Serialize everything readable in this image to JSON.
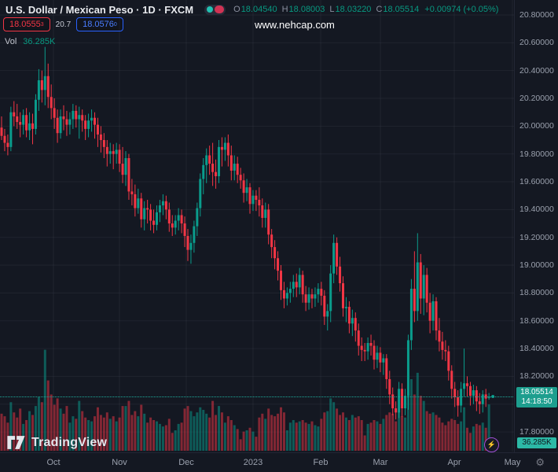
{
  "header": {
    "symbol_title": "U.S. Dollar / Mexican Peso · 1D · FXCM",
    "ohlc": {
      "o_label": "O",
      "o": "18.04540",
      "h_label": "H",
      "h": "18.08003",
      "l_label": "L",
      "l": "18.03220",
      "c_label": "C",
      "c": "18.05514",
      "change": "+0.00974 (+0.05%)"
    },
    "bid": "18.0555",
    "bid_sup": "3",
    "spread": "20.7",
    "ask": "18.0576",
    "ask_sup": "0",
    "vol_label": "Vol",
    "vol_value": "36.285K",
    "watermark": "www.nehcap.com"
  },
  "axis": {
    "price_labels": [
      "20.80000",
      "20.60000",
      "20.40000",
      "20.20000",
      "20.00000",
      "19.80000",
      "19.60000",
      "19.40000",
      "19.20000",
      "19.00000",
      "18.80000",
      "18.60000",
      "18.40000",
      "18.20000",
      "17.80000"
    ],
    "hidden_gridlines": [
      18.0
    ],
    "months": [
      {
        "label": "Oct",
        "x": 68
      },
      {
        "label": "Nov",
        "x": 152
      },
      {
        "label": "Dec",
        "x": 237
      },
      {
        "label": "2023",
        "x": 322
      },
      {
        "label": "Feb",
        "x": 408
      },
      {
        "label": "Mar",
        "x": 484
      },
      {
        "label": "Apr",
        "x": 578
      },
      {
        "label": "May",
        "x": 652
      }
    ],
    "last_price": "18.05514",
    "countdown": "14:18:50",
    "vol_axis_label": "36.285K",
    "gear_icon": "⚙"
  },
  "footer": {
    "logo_text": "TradingView",
    "boost_icon": "⚡"
  },
  "colors": {
    "background": "#141822",
    "up": "#0a9c8c",
    "down": "#f23645",
    "vol_up": "rgba(10,156,140,0.52)",
    "vol_down": "rgba(242,54,69,0.50)",
    "grid": "rgba(240,243,250,0.055)",
    "accent_teal": "#089981",
    "bid_red": "#f23645",
    "ask_blue": "#2962ff",
    "boost_purple": "#a855f7"
  },
  "chart_data": {
    "type": "candlestick",
    "title": "U.S. Dollar / Mexican Peso",
    "symbol": "USD/MXN",
    "timeframe": "1D",
    "exchange": "FXCM",
    "ylim": [
      17.65,
      20.9
    ],
    "grid": true,
    "volume_pane": true,
    "last_close": 18.05514,
    "columns": [
      "date",
      "open",
      "high",
      "low",
      "close",
      "volume_k"
    ],
    "candles": [
      [
        "2022-09-08",
        19.99,
        20.07,
        19.9,
        19.93,
        29
      ],
      [
        "2022-09-09",
        19.93,
        19.98,
        19.82,
        19.88,
        27
      ],
      [
        "2022-09-12",
        19.88,
        19.94,
        19.79,
        19.85,
        22
      ],
      [
        "2022-09-13",
        19.85,
        20.14,
        19.82,
        20.1,
        38
      ],
      [
        "2022-09-14",
        20.1,
        20.18,
        20.0,
        20.07,
        30
      ],
      [
        "2022-09-15",
        20.07,
        20.16,
        19.98,
        20.03,
        26
      ],
      [
        "2022-09-16",
        20.03,
        20.1,
        19.92,
        20.01,
        33
      ],
      [
        "2022-09-19",
        20.01,
        20.12,
        19.94,
        20.08,
        21
      ],
      [
        "2022-09-20",
        20.08,
        20.13,
        19.92,
        19.97,
        24
      ],
      [
        "2022-09-21",
        19.97,
        20.1,
        19.9,
        20.02,
        31
      ],
      [
        "2022-09-22",
        20.02,
        20.09,
        19.87,
        19.98,
        28
      ],
      [
        "2022-09-23",
        19.98,
        20.23,
        19.94,
        20.19,
        35
      ],
      [
        "2022-09-26",
        20.19,
        20.41,
        20.11,
        20.33,
        42
      ],
      [
        "2022-09-27",
        20.33,
        20.4,
        20.17,
        20.26,
        38
      ],
      [
        "2022-09-28",
        20.26,
        20.57,
        20.15,
        20.36,
        79
      ],
      [
        "2022-09-29",
        20.36,
        20.45,
        20.13,
        20.21,
        55
      ],
      [
        "2022-09-30",
        20.21,
        20.3,
        20.05,
        20.13,
        44
      ],
      [
        "2022-10-03",
        20.13,
        20.2,
        19.98,
        20.06,
        36
      ],
      [
        "2022-10-04",
        20.06,
        20.12,
        19.88,
        19.95,
        41
      ],
      [
        "2022-10-05",
        19.95,
        20.12,
        19.91,
        20.07,
        33
      ],
      [
        "2022-10-06",
        20.07,
        20.15,
        19.97,
        20.05,
        29
      ],
      [
        "2022-10-07",
        20.05,
        20.11,
        19.93,
        20.01,
        35
      ],
      [
        "2022-10-10",
        20.01,
        20.1,
        19.94,
        20.05,
        22
      ],
      [
        "2022-10-11",
        20.05,
        20.16,
        19.98,
        20.11,
        27
      ],
      [
        "2022-10-12",
        20.11,
        20.15,
        19.99,
        20.05,
        25
      ],
      [
        "2022-10-13",
        20.05,
        20.14,
        19.91,
        20.08,
        39
      ],
      [
        "2022-10-14",
        20.08,
        20.12,
        19.96,
        20.04,
        31
      ],
      [
        "2022-10-17",
        20.04,
        20.08,
        19.9,
        19.98,
        26
      ],
      [
        "2022-10-18",
        19.98,
        20.09,
        19.92,
        20.04,
        24
      ],
      [
        "2022-10-19",
        20.04,
        20.12,
        19.96,
        20.06,
        23
      ],
      [
        "2022-10-20",
        20.06,
        20.1,
        19.91,
        20.01,
        27
      ],
      [
        "2022-10-21",
        20.01,
        20.06,
        19.85,
        19.94,
        34
      ],
      [
        "2022-10-24",
        19.94,
        20.0,
        19.81,
        19.9,
        28
      ],
      [
        "2022-10-25",
        19.9,
        19.95,
        19.77,
        19.85,
        26
      ],
      [
        "2022-10-26",
        19.85,
        19.9,
        19.71,
        19.8,
        30
      ],
      [
        "2022-10-27",
        19.8,
        19.88,
        19.73,
        19.82,
        25
      ],
      [
        "2022-10-28",
        19.82,
        19.87,
        19.69,
        19.8,
        27
      ],
      [
        "2022-10-31",
        19.8,
        19.88,
        19.73,
        19.83,
        23
      ],
      [
        "2022-11-01",
        19.83,
        19.87,
        19.67,
        19.73,
        26
      ],
      [
        "2022-11-02",
        19.73,
        19.85,
        19.59,
        19.65,
        35
      ],
      [
        "2022-11-03",
        19.65,
        19.82,
        19.57,
        19.77,
        35
      ],
      [
        "2022-11-04",
        19.77,
        19.8,
        19.47,
        19.53,
        39
      ],
      [
        "2022-11-07",
        19.53,
        19.62,
        19.43,
        19.51,
        28
      ],
      [
        "2022-11-08",
        19.51,
        19.58,
        19.35,
        19.41,
        31
      ],
      [
        "2022-11-09",
        19.41,
        19.55,
        19.37,
        19.48,
        27
      ],
      [
        "2022-11-10",
        19.48,
        19.52,
        19.27,
        19.33,
        36
      ],
      [
        "2022-11-11",
        19.33,
        19.46,
        19.25,
        19.41,
        29
      ],
      [
        "2022-11-14",
        19.41,
        19.47,
        19.3,
        19.4,
        22
      ],
      [
        "2022-11-15",
        19.4,
        19.44,
        19.25,
        19.32,
        26
      ],
      [
        "2022-11-16",
        19.32,
        19.4,
        19.23,
        19.29,
        24
      ],
      [
        "2022-11-17",
        19.29,
        19.43,
        19.25,
        19.38,
        23
      ],
      [
        "2022-11-18",
        19.38,
        19.47,
        19.31,
        19.43,
        21
      ],
      [
        "2022-11-21",
        19.43,
        19.51,
        19.36,
        19.46,
        19
      ],
      [
        "2022-11-22",
        19.46,
        19.5,
        19.33,
        19.4,
        20
      ],
      [
        "2022-11-23",
        19.4,
        19.45,
        19.24,
        19.3,
        25
      ],
      [
        "2022-11-24",
        19.3,
        19.36,
        19.21,
        19.27,
        14
      ],
      [
        "2022-11-25",
        19.27,
        19.36,
        19.22,
        19.32,
        16
      ],
      [
        "2022-11-28",
        19.32,
        19.41,
        19.25,
        19.36,
        21
      ],
      [
        "2022-11-29",
        19.36,
        19.4,
        19.23,
        19.3,
        22
      ],
      [
        "2022-11-30",
        19.3,
        19.35,
        19.13,
        19.21,
        33
      ],
      [
        "2022-12-01",
        19.21,
        19.26,
        19.03,
        19.11,
        35
      ],
      [
        "2022-12-02",
        19.11,
        19.22,
        19.01,
        19.16,
        31
      ],
      [
        "2022-12-05",
        19.16,
        19.32,
        19.09,
        19.28,
        27
      ],
      [
        "2022-12-06",
        19.28,
        19.45,
        19.21,
        19.41,
        30
      ],
      [
        "2022-12-07",
        19.41,
        19.66,
        19.35,
        19.62,
        34
      ],
      [
        "2022-12-08",
        19.62,
        19.77,
        19.51,
        19.72,
        32
      ],
      [
        "2022-12-09",
        19.72,
        19.84,
        19.59,
        19.79,
        29
      ],
      [
        "2022-12-12",
        19.79,
        19.86,
        19.65,
        19.73,
        26
      ],
      [
        "2022-12-13",
        19.73,
        19.88,
        19.57,
        19.67,
        39
      ],
      [
        "2022-12-14",
        19.67,
        19.76,
        19.55,
        19.64,
        28
      ],
      [
        "2022-12-15",
        19.64,
        19.9,
        19.59,
        19.85,
        35
      ],
      [
        "2022-12-16",
        19.85,
        19.92,
        19.71,
        19.83,
        30
      ],
      [
        "2022-12-19",
        19.83,
        19.92,
        19.75,
        19.88,
        22
      ],
      [
        "2022-12-20",
        19.88,
        19.94,
        19.71,
        19.79,
        27
      ],
      [
        "2022-12-21",
        19.79,
        19.86,
        19.61,
        19.68,
        24
      ],
      [
        "2022-12-22",
        19.68,
        19.79,
        19.61,
        19.73,
        20
      ],
      [
        "2022-12-23",
        19.73,
        19.78,
        19.59,
        19.65,
        17
      ],
      [
        "2022-12-26",
        19.65,
        19.7,
        19.55,
        19.61,
        9
      ],
      [
        "2022-12-27",
        19.61,
        19.66,
        19.45,
        19.52,
        15
      ],
      [
        "2022-12-28",
        19.52,
        19.62,
        19.46,
        19.56,
        16
      ],
      [
        "2022-12-29",
        19.56,
        19.59,
        19.37,
        19.44,
        18
      ],
      [
        "2022-12-30",
        19.44,
        19.54,
        19.39,
        19.5,
        15
      ],
      [
        "2023-01-02",
        19.5,
        19.54,
        19.39,
        19.47,
        11
      ],
      [
        "2023-01-03",
        19.47,
        19.56,
        19.35,
        19.43,
        26
      ],
      [
        "2023-01-04",
        19.43,
        19.48,
        19.27,
        19.34,
        29
      ],
      [
        "2023-01-05",
        19.34,
        19.45,
        19.27,
        19.4,
        25
      ],
      [
        "2023-01-06",
        19.4,
        19.44,
        19.15,
        19.22,
        33
      ],
      [
        "2023-01-09",
        19.22,
        19.26,
        19.05,
        19.13,
        28
      ],
      [
        "2023-01-10",
        19.13,
        19.18,
        18.97,
        19.05,
        27
      ],
      [
        "2023-01-11",
        19.05,
        19.1,
        18.89,
        18.96,
        29
      ],
      [
        "2023-01-12",
        18.96,
        19.0,
        18.75,
        18.82,
        34
      ],
      [
        "2023-01-13",
        18.82,
        18.88,
        18.69,
        18.76,
        30
      ],
      [
        "2023-01-16",
        18.76,
        18.84,
        18.71,
        18.8,
        16
      ],
      [
        "2023-01-17",
        18.8,
        18.88,
        18.73,
        18.83,
        22
      ],
      [
        "2023-01-18",
        18.83,
        18.93,
        18.77,
        18.88,
        24
      ],
      [
        "2023-01-19",
        18.88,
        18.94,
        18.77,
        18.84,
        22
      ],
      [
        "2023-01-20",
        18.84,
        18.98,
        18.79,
        18.93,
        23
      ],
      [
        "2023-01-23",
        18.93,
        18.96,
        18.73,
        18.79,
        24
      ],
      [
        "2023-01-24",
        18.79,
        18.85,
        18.67,
        18.73,
        22
      ],
      [
        "2023-01-25",
        18.73,
        18.84,
        18.68,
        18.79,
        21
      ],
      [
        "2023-01-26",
        18.79,
        18.83,
        18.69,
        18.76,
        23
      ],
      [
        "2023-01-27",
        18.76,
        18.84,
        18.7,
        18.79,
        20
      ],
      [
        "2023-01-30",
        18.79,
        18.87,
        18.73,
        18.83,
        19
      ],
      [
        "2023-01-31",
        18.83,
        18.88,
        18.71,
        18.78,
        25
      ],
      [
        "2023-02-01",
        18.78,
        18.82,
        18.57,
        18.63,
        30
      ],
      [
        "2023-02-02",
        18.63,
        18.72,
        18.53,
        18.67,
        31
      ],
      [
        "2023-02-03",
        18.67,
        19.0,
        18.59,
        18.94,
        41
      ],
      [
        "2023-02-06",
        18.94,
        19.22,
        18.87,
        19.16,
        38
      ],
      [
        "2023-02-07",
        19.16,
        19.2,
        18.93,
        18.99,
        33
      ],
      [
        "2023-02-08",
        18.99,
        19.06,
        18.81,
        18.87,
        28
      ],
      [
        "2023-02-09",
        18.87,
        18.92,
        18.63,
        18.69,
        30
      ],
      [
        "2023-02-10",
        18.69,
        18.77,
        18.59,
        18.7,
        26
      ],
      [
        "2023-02-13",
        18.7,
        18.74,
        18.51,
        18.58,
        24
      ],
      [
        "2023-02-14",
        18.58,
        18.68,
        18.49,
        18.62,
        28
      ],
      [
        "2023-02-15",
        18.62,
        18.66,
        18.45,
        18.53,
        26
      ],
      [
        "2023-02-16",
        18.53,
        18.58,
        18.35,
        18.42,
        27
      ],
      [
        "2023-02-17",
        18.42,
        18.48,
        18.31,
        18.39,
        24
      ],
      [
        "2023-02-20",
        18.39,
        18.44,
        18.31,
        18.38,
        12
      ],
      [
        "2023-02-21",
        18.38,
        18.48,
        18.32,
        18.44,
        21
      ],
      [
        "2023-02-22",
        18.44,
        18.5,
        18.35,
        18.42,
        22
      ],
      [
        "2023-02-23",
        18.42,
        18.46,
        18.25,
        18.32,
        24
      ],
      [
        "2023-02-24",
        18.32,
        18.42,
        18.26,
        18.37,
        23
      ],
      [
        "2023-02-27",
        18.37,
        18.41,
        18.23,
        18.3,
        21
      ],
      [
        "2023-02-28",
        18.3,
        18.36,
        18.21,
        18.33,
        25
      ],
      [
        "2023-03-01",
        18.33,
        18.36,
        18.11,
        18.18,
        28
      ],
      [
        "2023-03-02",
        18.18,
        18.24,
        18.0,
        18.07,
        30
      ],
      [
        "2023-03-03",
        18.07,
        18.12,
        17.92,
        17.97,
        29
      ],
      [
        "2023-03-06",
        17.97,
        18.02,
        17.89,
        17.94,
        23
      ],
      [
        "2023-03-07",
        17.94,
        18.16,
        17.9,
        18.11,
        31
      ],
      [
        "2023-03-08",
        18.11,
        18.15,
        17.91,
        17.97,
        27
      ],
      [
        "2023-03-09",
        17.97,
        18.11,
        17.92,
        18.06,
        26
      ],
      [
        "2023-03-10",
        18.06,
        18.5,
        17.96,
        18.46,
        47
      ],
      [
        "2023-03-13",
        18.46,
        18.9,
        18.39,
        18.83,
        56
      ],
      [
        "2023-03-14",
        18.83,
        19.1,
        18.59,
        18.67,
        44
      ],
      [
        "2023-03-15",
        18.67,
        19.23,
        18.6,
        19.02,
        61
      ],
      [
        "2023-03-16",
        19.02,
        19.08,
        18.65,
        18.76,
        43
      ],
      [
        "2023-03-17",
        18.76,
        19.0,
        18.64,
        18.93,
        39
      ],
      [
        "2023-03-20",
        18.93,
        18.98,
        18.66,
        18.73,
        31
      ],
      [
        "2023-03-21",
        18.73,
        18.8,
        18.51,
        18.6,
        29
      ],
      [
        "2023-03-22",
        18.6,
        18.79,
        18.53,
        18.74,
        30
      ],
      [
        "2023-03-23",
        18.74,
        18.77,
        18.46,
        18.53,
        28
      ],
      [
        "2023-03-24",
        18.53,
        18.62,
        18.38,
        18.45,
        26
      ],
      [
        "2023-03-27",
        18.45,
        18.52,
        18.32,
        18.39,
        22
      ],
      [
        "2023-03-28",
        18.39,
        18.46,
        18.31,
        18.38,
        20
      ],
      [
        "2023-03-29",
        18.38,
        18.42,
        18.17,
        18.24,
        23
      ],
      [
        "2023-03-30",
        18.24,
        18.28,
        18.04,
        18.11,
        25
      ],
      [
        "2023-03-31",
        18.11,
        18.16,
        17.98,
        18.05,
        24
      ],
      [
        "2023-04-03",
        18.05,
        18.1,
        17.91,
        17.99,
        21
      ],
      [
        "2023-04-04",
        17.99,
        18.16,
        17.94,
        18.11,
        23
      ],
      [
        "2023-04-05",
        18.11,
        18.4,
        18.05,
        18.15,
        34
      ],
      [
        "2023-04-06",
        18.15,
        18.2,
        18.05,
        18.13,
        18
      ],
      [
        "2023-04-10",
        18.13,
        18.16,
        17.99,
        18.06,
        14
      ],
      [
        "2023-04-11",
        18.06,
        18.14,
        18.0,
        18.1,
        19
      ],
      [
        "2023-04-12",
        18.1,
        18.13,
        17.95,
        18.02,
        21
      ],
      [
        "2023-04-13",
        18.02,
        18.08,
        17.93,
        18.0,
        20
      ],
      [
        "2023-04-14",
        18.0,
        18.1,
        17.94,
        18.07,
        22
      ],
      [
        "2023-04-17",
        18.07,
        18.11,
        17.98,
        18.04,
        18
      ],
      [
        "2023-04-18",
        18.0454,
        18.08003,
        18.0322,
        18.05514,
        36.285
      ]
    ]
  }
}
